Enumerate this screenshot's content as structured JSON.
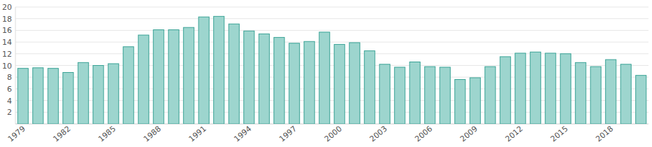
{
  "chart_data": {
    "type": "bar",
    "categories": [
      "1979",
      null,
      null,
      "1982",
      null,
      null,
      "1985",
      null,
      null,
      "1988",
      null,
      null,
      "1991",
      null,
      null,
      "1994",
      null,
      null,
      "1997",
      null,
      null,
      "2000",
      null,
      null,
      "2003",
      null,
      null,
      "2006",
      null,
      null,
      "2009",
      null,
      null,
      "2012",
      null,
      null,
      "2015",
      null,
      null,
      "2018",
      null,
      null
    ],
    "values": [
      9.5,
      9.6,
      9.5,
      8.8,
      10.5,
      10.0,
      10.3,
      13.2,
      15.2,
      16.1,
      16.1,
      16.5,
      18.3,
      18.4,
      17.1,
      15.9,
      15.4,
      14.8,
      13.8,
      14.1,
      15.7,
      13.6,
      13.9,
      12.5,
      10.2,
      9.7,
      10.6,
      9.8,
      9.7,
      7.6,
      7.9,
      9.8,
      11.5,
      12.1,
      12.3,
      12.1,
      12.0,
      10.5,
      9.8,
      11.0,
      10.2,
      8.3
    ],
    "color": "#9dd5ce",
    "ylim": [
      0,
      20
    ],
    "yticks": [
      2,
      4,
      6,
      8,
      10,
      12,
      14,
      16,
      18,
      20
    ],
    "grid": true
  }
}
